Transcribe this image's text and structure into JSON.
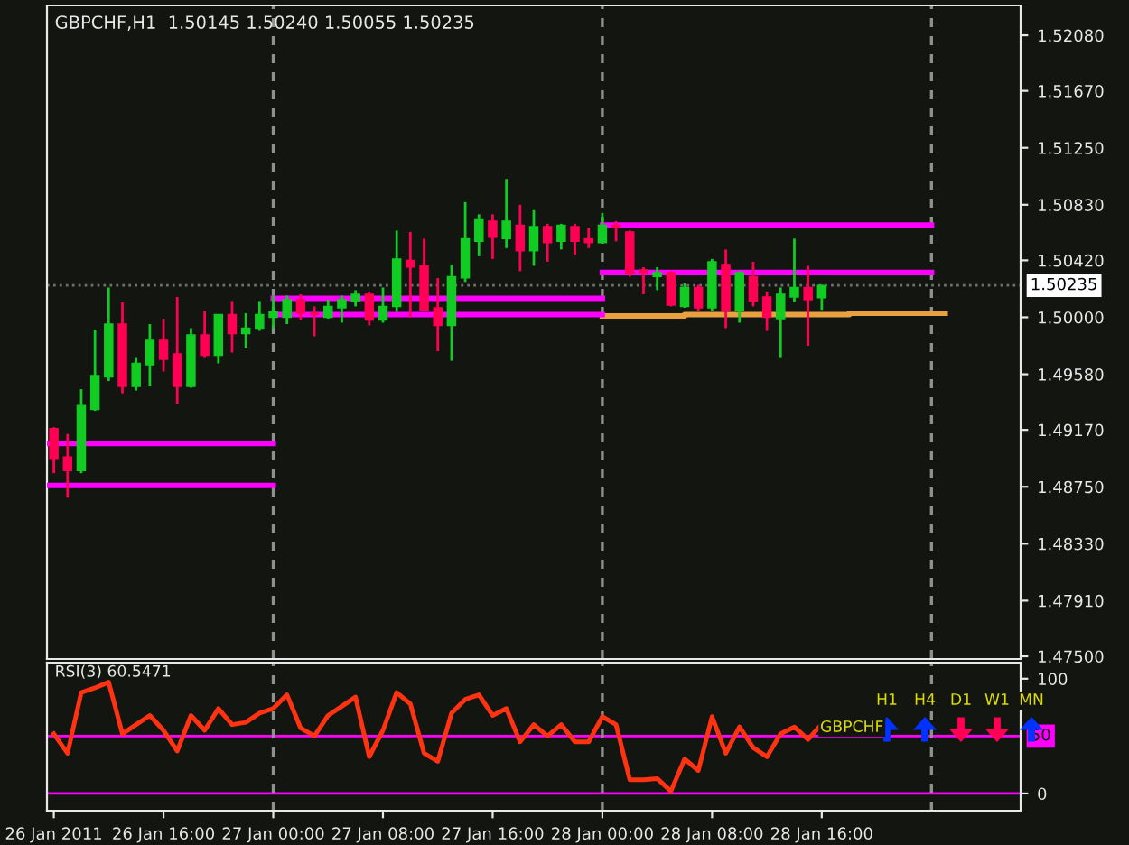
{
  "chart_data": [
    {
      "type": "candlestick",
      "title": "GBPCHF,H1  1.50145 1.50240 1.50055 1.50235",
      "x": [
        "2011-01-26T08:00",
        "2011-01-26T09:00",
        "2011-01-26T10:00",
        "2011-01-26T11:00",
        "2011-01-26T12:00",
        "2011-01-26T13:00",
        "2011-01-26T14:00",
        "2011-01-26T15:00",
        "2011-01-26T16:00",
        "2011-01-26T17:00",
        "2011-01-26T18:00",
        "2011-01-26T19:00",
        "2011-01-26T20:00",
        "2011-01-26T21:00",
        "2011-01-26T22:00",
        "2011-01-26T23:00",
        "2011-01-27T00:00",
        "2011-01-27T01:00",
        "2011-01-27T02:00",
        "2011-01-27T03:00",
        "2011-01-27T04:00",
        "2011-01-27T05:00",
        "2011-01-27T06:00",
        "2011-01-27T07:00",
        "2011-01-27T08:00",
        "2011-01-27T09:00",
        "2011-01-27T10:00",
        "2011-01-27T11:00",
        "2011-01-27T12:00",
        "2011-01-27T13:00",
        "2011-01-27T14:00",
        "2011-01-27T15:00",
        "2011-01-27T16:00",
        "2011-01-27T17:00",
        "2011-01-27T18:00",
        "2011-01-27T19:00",
        "2011-01-27T20:00",
        "2011-01-27T21:00",
        "2011-01-27T22:00",
        "2011-01-27T23:00",
        "2011-01-28T00:00",
        "2011-01-28T01:00",
        "2011-01-28T02:00",
        "2011-01-28T03:00",
        "2011-01-28T04:00",
        "2011-01-28T05:00",
        "2011-01-28T06:00",
        "2011-01-28T07:00",
        "2011-01-28T08:00",
        "2011-01-28T09:00",
        "2011-01-28T10:00",
        "2011-01-28T11:00",
        "2011-01-28T12:00",
        "2011-01-28T13:00",
        "2011-01-28T14:00",
        "2011-01-28T15:00",
        "2011-01-28T16:00"
      ],
      "ohlc": [
        [
          1.4918,
          1.4919,
          1.4885,
          1.4896
        ],
        [
          1.4897,
          1.4914,
          1.4867,
          1.4887
        ],
        [
          1.4887,
          1.4947,
          1.4885,
          1.4935
        ],
        [
          1.4932,
          1.4991,
          1.4931,
          1.4957
        ],
        [
          1.4956,
          1.5022,
          1.4953,
          1.4995
        ],
        [
          1.4995,
          1.5011,
          1.4944,
          1.4949
        ],
        [
          1.4949,
          1.497,
          1.4946,
          1.4966
        ],
        [
          1.4965,
          1.4995,
          1.4949,
          1.4983
        ],
        [
          1.4983,
          1.4999,
          1.496,
          1.4969
        ],
        [
          1.4973,
          1.5015,
          1.4936,
          1.4949
        ],
        [
          1.4949,
          1.4992,
          1.4948,
          1.4987
        ],
        [
          1.4987,
          1.5005,
          1.497,
          1.4972
        ],
        [
          1.4972,
          1.5002,
          1.4966,
          1.5002
        ],
        [
          1.5002,
          1.5012,
          1.4974,
          1.4988
        ],
        [
          1.4988,
          1.5003,
          1.4977,
          1.4992
        ],
        [
          1.4992,
          1.5012,
          1.499,
          1.5002
        ],
        [
          1.5,
          1.5016,
          1.4992,
          1.5004
        ],
        [
          1.5,
          1.5016,
          1.4995,
          1.5013
        ],
        [
          1.5013,
          1.5017,
          1.4998,
          1.5003
        ],
        [
          1.5003,
          1.5008,
          1.4986,
          1.5002
        ],
        [
          1.5,
          1.5013,
          1.4999,
          1.5008
        ],
        [
          1.5007,
          1.5016,
          1.4996,
          1.5013
        ],
        [
          1.5012,
          1.502,
          1.5008,
          1.5017
        ],
        [
          1.5017,
          1.5019,
          1.4994,
          1.4998
        ],
        [
          1.4998,
          1.5022,
          1.4996,
          1.5008
        ],
        [
          1.5008,
          1.5064,
          1.5004,
          1.5043
        ],
        [
          1.5042,
          1.5063,
          1.5,
          1.5037
        ],
        [
          1.5038,
          1.5058,
          1.5005,
          1.5005
        ],
        [
          1.5007,
          1.5029,
          1.4975,
          1.4994
        ],
        [
          1.4994,
          1.5039,
          1.4968,
          1.503
        ],
        [
          1.5029,
          1.5085,
          1.5026,
          1.5058
        ],
        [
          1.5056,
          1.5076,
          1.5045,
          1.5072
        ],
        [
          1.5071,
          1.5076,
          1.5043,
          1.5059
        ],
        [
          1.5058,
          1.5102,
          1.5051,
          1.5071
        ],
        [
          1.5068,
          1.5083,
          1.5034,
          1.5049
        ],
        [
          1.5049,
          1.5079,
          1.5038,
          1.5067
        ],
        [
          1.5067,
          1.5069,
          1.5041,
          1.5055
        ],
        [
          1.5056,
          1.5069,
          1.505,
          1.5068
        ],
        [
          1.5067,
          1.5069,
          1.5046,
          1.5056
        ],
        [
          1.5058,
          1.5066,
          1.5051,
          1.5055
        ],
        [
          1.5055,
          1.5077,
          1.5055,
          1.5068
        ],
        [
          1.5068,
          1.5071,
          1.5056,
          1.5066
        ],
        [
          1.5063,
          1.5064,
          1.503,
          1.5032
        ],
        [
          1.5035,
          1.5037,
          1.5017,
          1.5033
        ],
        [
          1.503,
          1.5037,
          1.502,
          1.5033
        ],
        [
          1.5033,
          1.5034,
          1.5008,
          1.5009
        ],
        [
          1.5008,
          1.5025,
          1.5007,
          1.5022
        ],
        [
          1.5022,
          1.5024,
          1.5005,
          1.5007
        ],
        [
          1.5007,
          1.5043,
          1.5005,
          1.5041
        ],
        [
          1.5039,
          1.505,
          1.4992,
          1.5005
        ],
        [
          1.5005,
          1.5034,
          1.4996,
          1.5033
        ],
        [
          1.503,
          1.5041,
          1.5008,
          1.5012
        ],
        [
          1.5015,
          1.5019,
          1.499,
          1.5
        ],
        [
          1.4999,
          1.5022,
          1.497,
          1.5017
        ],
        [
          1.5015,
          1.5058,
          1.5011,
          1.5022
        ],
        [
          1.5022,
          1.5038,
          1.4979,
          1.5013
        ],
        [
          1.50145,
          1.5024,
          1.50055,
          1.50235
        ]
      ],
      "colors": [
        "#ff0055",
        "#ff0055",
        "#11cc22",
        "#11cc22",
        "#11cc22",
        "#ff0055",
        "#11cc22",
        "#11cc22",
        "#ff0055",
        "#ff0055",
        "#11cc22",
        "#ff0055",
        "#11cc22",
        "#ff0055",
        "#11cc22",
        "#11cc22",
        "#11cc22",
        "#11cc22",
        "#ff0055",
        "#ff0055",
        "#11cc22",
        "#11cc22",
        "#11cc22",
        "#ff0055",
        "#11cc22",
        "#11cc22",
        "#ff0055",
        "#ff0055",
        "#ff0055",
        "#11cc22",
        "#11cc22",
        "#11cc22",
        "#ff0055",
        "#11cc22",
        "#ff0055",
        "#11cc22",
        "#ff0055",
        "#11cc22",
        "#ff0055",
        "#ff0055",
        "#11cc22",
        "#ff0055",
        "#ff0055",
        "#ff0055",
        "#11cc22",
        "#ff0055",
        "#11cc22",
        "#ff0055",
        "#11cc22",
        "#ff0055",
        "#11cc22",
        "#ff0055",
        "#ff0055",
        "#11cc22",
        "#11cc22",
        "#ff0055",
        "#11cc22"
      ],
      "series": [
        {
          "type": "line",
          "color": "#ff00ff",
          "x": [
            "2011-01-26T07:30",
            "2011-01-27T00:00"
          ],
          "values": [
            1.4907,
            1.4907
          ]
        },
        {
          "type": "line",
          "color": "#ff00ff",
          "x": [
            "2011-01-26T07:30",
            "2011-01-27T00:00"
          ],
          "values": [
            1.4876,
            1.4876
          ]
        },
        {
          "type": "line",
          "color": "#ff00ff",
          "x": [
            "2011-01-27T00:00",
            "2011-01-28T00:00"
          ],
          "values": [
            1.5014,
            1.5014
          ]
        },
        {
          "type": "line",
          "color": "#ff00ff",
          "x": [
            "2011-01-27T00:00",
            "2011-01-28T00:00"
          ],
          "values": [
            1.5002,
            1.5002
          ]
        },
        {
          "type": "line",
          "color": "#ff00ff",
          "x": [
            "2011-01-28T00:00",
            "2011-01-29T00:00"
          ],
          "values": [
            1.5068,
            1.5068
          ]
        },
        {
          "type": "line",
          "color": "#ff00ff",
          "x": [
            "2011-01-28T00:00",
            "2011-01-29T00:00"
          ],
          "values": [
            1.5033,
            1.5033
          ]
        },
        {
          "type": "step",
          "color": "#e8a040",
          "x": [
            "2011-01-28T00:00",
            "2011-01-28T06:00",
            "2011-01-28T18:00",
            "2011-01-29T01:00"
          ],
          "values": [
            1.5001,
            1.5002,
            1.5003,
            1.5003
          ]
        }
      ],
      "ref_lines": [
        {
          "axis": "y",
          "value": 1.50235,
          "label": "1.50235",
          "color": "#707070",
          "line_style": "dotted"
        },
        {
          "axis": "x",
          "value": "2011-01-27T00:00",
          "color": "#909090",
          "line_style": "dashed"
        },
        {
          "axis": "x",
          "value": "2011-01-28T00:00",
          "color": "#909090",
          "line_style": "dashed"
        },
        {
          "axis": "x",
          "value": "2011-01-29T00:00",
          "color": "#909090",
          "line_style": "dashed"
        }
      ],
      "xlim": [
        "2011-01-26T07:30",
        "2011-01-29T06:30"
      ],
      "ylim": [
        1.4748,
        1.523
      ],
      "yticks": [
        {
          "value": 1.5208,
          "label": "1.52080"
        },
        {
          "value": 1.5167,
          "label": "1.51670"
        },
        {
          "value": 1.5125,
          "label": "1.51250"
        },
        {
          "value": 1.5083,
          "label": "1.50830"
        },
        {
          "value": 1.5042,
          "label": "1.50420"
        },
        {
          "value": 1.5,
          "label": "1.50000"
        },
        {
          "value": 1.4958,
          "label": "1.49580"
        },
        {
          "value": 1.4917,
          "label": "1.49170"
        },
        {
          "value": 1.4875,
          "label": "1.48750"
        },
        {
          "value": 1.4833,
          "label": "1.48330"
        },
        {
          "value": 1.4791,
          "label": "1.47910"
        },
        {
          "value": 1.475,
          "label": "1.47500"
        }
      ],
      "tick_labels": "y",
      "grid": false,
      "legend": false
    },
    {
      "type": "line",
      "title": "RSI(3) 60.5471",
      "x": [
        "2011-01-26T08:00",
        "2011-01-26T09:00",
        "2011-01-26T10:00",
        "2011-01-26T11:00",
        "2011-01-26T12:00",
        "2011-01-26T13:00",
        "2011-01-26T14:00",
        "2011-01-26T15:00",
        "2011-01-26T16:00",
        "2011-01-26T17:00",
        "2011-01-26T18:00",
        "2011-01-26T19:00",
        "2011-01-26T20:00",
        "2011-01-26T21:00",
        "2011-01-26T22:00",
        "2011-01-26T23:00",
        "2011-01-27T00:00",
        "2011-01-27T01:00",
        "2011-01-27T02:00",
        "2011-01-27T03:00",
        "2011-01-27T04:00",
        "2011-01-27T05:00",
        "2011-01-27T06:00",
        "2011-01-27T07:00",
        "2011-01-27T08:00",
        "2011-01-27T09:00",
        "2011-01-27T10:00",
        "2011-01-27T11:00",
        "2011-01-27T12:00",
        "2011-01-27T13:00",
        "2011-01-27T14:00",
        "2011-01-27T15:00",
        "2011-01-27T16:00",
        "2011-01-27T17:00",
        "2011-01-27T18:00",
        "2011-01-27T19:00",
        "2011-01-27T20:00",
        "2011-01-27T21:00",
        "2011-01-27T22:00",
        "2011-01-27T23:00",
        "2011-01-28T00:00",
        "2011-01-28T01:00",
        "2011-01-28T02:00",
        "2011-01-28T03:00",
        "2011-01-28T04:00",
        "2011-01-28T05:00",
        "2011-01-28T06:00",
        "2011-01-28T07:00",
        "2011-01-28T08:00",
        "2011-01-28T09:00",
        "2011-01-28T10:00",
        "2011-01-28T11:00",
        "2011-01-28T12:00",
        "2011-01-28T13:00",
        "2011-01-28T14:00",
        "2011-01-28T15:00",
        "2011-01-28T16:00"
      ],
      "series": [
        {
          "color": "#ff3311",
          "values": [
            52,
            35,
            88,
            92,
            97,
            52,
            60,
            68,
            55,
            37,
            68,
            55,
            74,
            60,
            62,
            70,
            74,
            86,
            57,
            50,
            68,
            76,
            84,
            32,
            55,
            88,
            78,
            35,
            28,
            70,
            82,
            86,
            68,
            74,
            45,
            60,
            50,
            60,
            45,
            45,
            67,
            60,
            12,
            12,
            13,
            2,
            30,
            20,
            67,
            35,
            58,
            40,
            32,
            52,
            58,
            47,
            60.5471
          ]
        }
      ],
      "ref_lines": [
        {
          "axis": "y",
          "value": 50,
          "label": "50",
          "color": "#ff00ff",
          "line_style": "solid"
        },
        {
          "axis": "y",
          "value": 0,
          "color": "#ff00ff",
          "line_style": "solid"
        },
        {
          "axis": "x",
          "value": "2011-01-27T00:00",
          "color": "#909090",
          "line_style": "dashed"
        },
        {
          "axis": "x",
          "value": "2011-01-28T00:00",
          "color": "#909090",
          "line_style": "dashed"
        },
        {
          "axis": "x",
          "value": "2011-01-29T00:00",
          "color": "#909090",
          "line_style": "dashed"
        }
      ],
      "annotations": [
        "GBPCHF",
        "H1",
        "H4",
        "D1",
        "W1",
        "MN"
      ],
      "xlim": [
        "2011-01-26T07:30",
        "2011-01-29T06:30"
      ],
      "xticks": [
        {
          "value": "2011-01-26T08:00",
          "label": "26 Jan 2011"
        },
        {
          "value": "2011-01-26T16:00",
          "label": "26 Jan 16:00"
        },
        {
          "value": "2011-01-27T00:00",
          "label": "27 Jan 00:00"
        },
        {
          "value": "2011-01-27T08:00",
          "label": "27 Jan 08:00"
        },
        {
          "value": "2011-01-27T16:00",
          "label": "27 Jan 16:00"
        },
        {
          "value": "2011-01-28T00:00",
          "label": "28 Jan 00:00"
        },
        {
          "value": "2011-01-28T08:00",
          "label": "28 Jan 08:00"
        },
        {
          "value": "2011-01-28T16:00",
          "label": "28 Jan 16:00"
        }
      ],
      "ylim": [
        -15,
        114
      ],
      "yticks": [
        100,
        0
      ],
      "grid": false,
      "legend": false,
      "marker": "none",
      "line_style": "solid"
    }
  ]
}
